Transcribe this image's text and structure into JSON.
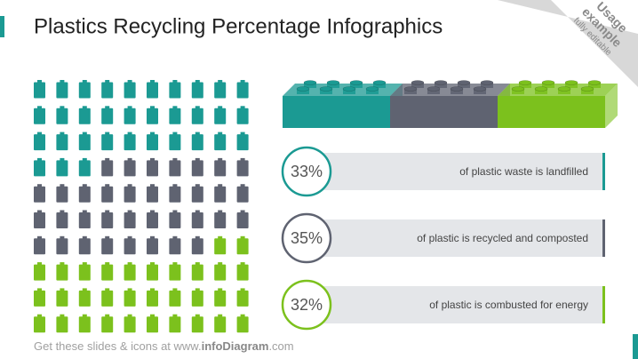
{
  "chart_data": {
    "type": "waffle",
    "title": "Plastics Recycling Percentage Infographics",
    "categories": [
      "of plastic waste is landfilled",
      "of plastic is recycled and composted",
      "of plastic is combusted for energy"
    ],
    "values": [
      33,
      35,
      32
    ],
    "value_labels": [
      "33%",
      "35%",
      "32%"
    ],
    "colors": [
      "#1b9a93",
      "#5f6371",
      "#7cc11d"
    ],
    "grid_columns": 10,
    "grid_rows": 10
  },
  "ribbon": {
    "line1": "Usage",
    "line2": "example",
    "line3": "fully editable"
  },
  "footer": {
    "prefix": "Get these slides & icons at www.",
    "brand": "infoDiagram",
    "suffix": ".com"
  }
}
